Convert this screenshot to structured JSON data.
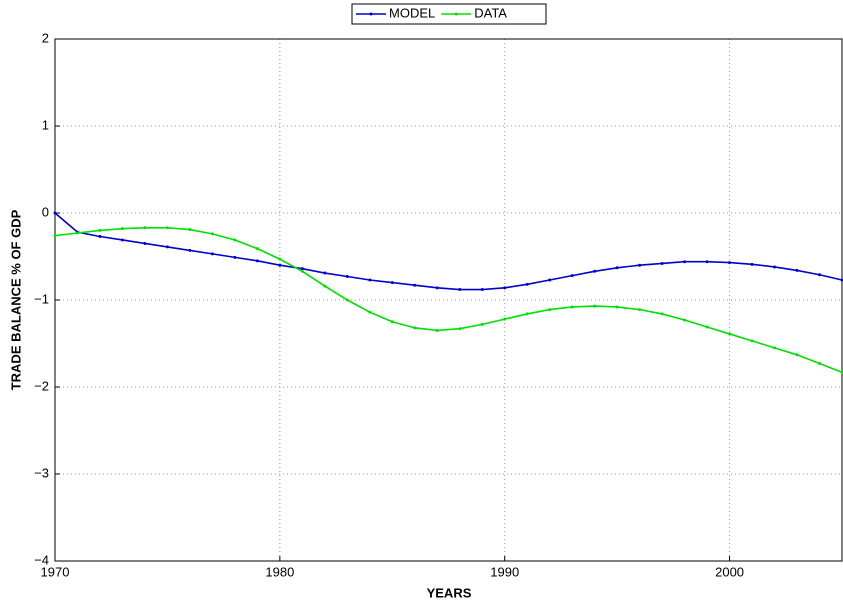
{
  "chart_data": {
    "type": "line",
    "xlabel": "YEARS",
    "ylabel": "TRADE BALANCE % OF GDP",
    "x": [
      1970,
      1971,
      1972,
      1973,
      1974,
      1975,
      1976,
      1977,
      1978,
      1979,
      1980,
      1981,
      1982,
      1983,
      1984,
      1985,
      1986,
      1987,
      1988,
      1989,
      1990,
      1991,
      1992,
      1993,
      1994,
      1995,
      1996,
      1997,
      1998,
      1999,
      2000,
      2001,
      2002,
      2003,
      2004,
      2005
    ],
    "series": [
      {
        "name": "MODEL",
        "color": "#0000cc",
        "values": [
          0,
          -0.22,
          -0.27,
          -0.31,
          -0.35,
          -0.39,
          -0.43,
          -0.47,
          -0.51,
          -0.55,
          -0.6,
          -0.64,
          -0.69,
          -0.73,
          -0.77,
          -0.8,
          -0.83,
          -0.86,
          -0.88,
          -0.88,
          -0.86,
          -0.82,
          -0.77,
          -0.72,
          -0.67,
          -0.63,
          -0.6,
          -0.58,
          -0.56,
          -0.56,
          -0.57,
          -0.59,
          -0.62,
          -0.66,
          -0.71,
          -0.77
        ]
      },
      {
        "name": "DATA",
        "color": "#00e000",
        "values": [
          -0.26,
          -0.23,
          -0.2,
          -0.18,
          -0.17,
          -0.17,
          -0.19,
          -0.24,
          -0.31,
          -0.41,
          -0.53,
          -0.67,
          -0.84,
          -1.0,
          -1.14,
          -1.25,
          -1.32,
          -1.35,
          -1.33,
          -1.28,
          -1.22,
          -1.16,
          -1.11,
          -1.08,
          -1.07,
          -1.08,
          -1.11,
          -1.16,
          -1.23,
          -1.31,
          -1.39,
          -1.47,
          -1.55,
          -1.63,
          -1.73,
          -1.83
        ]
      }
    ],
    "xlim": [
      1970,
      2005
    ],
    "xticks": [
      1970,
      1980,
      1990,
      2000
    ],
    "ylim": [
      -4,
      2
    ],
    "yticks": [
      {
        "value": -4,
        "label": "−4"
      },
      {
        "value": -3,
        "label": "−3"
      },
      {
        "value": -2,
        "label": "−2"
      },
      {
        "value": -1,
        "label": "−1"
      },
      0,
      1,
      2
    ],
    "grid": true,
    "legend": "top"
  }
}
